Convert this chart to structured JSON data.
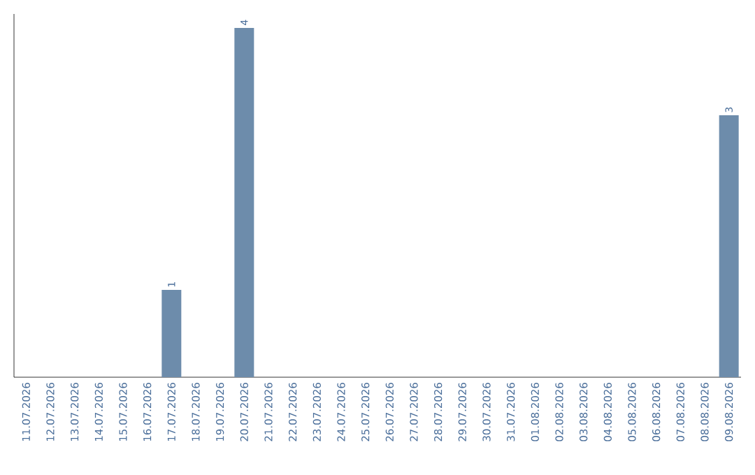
{
  "chart_data": {
    "type": "bar",
    "categories": [
      "11.07.2026",
      "12.07.2026",
      "13.07.2026",
      "14.07.2026",
      "15.07.2026",
      "16.07.2026",
      "17.07.2026",
      "18.07.2026",
      "19.07.2026",
      "20.07.2026",
      "21.07.2026",
      "22.07.2026",
      "23.07.2026",
      "24.07.2026",
      "25.07.2026",
      "26.07.2026",
      "27.07.2026",
      "28.07.2026",
      "29.07.2026",
      "30.07.2026",
      "31.07.2026",
      "01.08.2026",
      "02.08.2026",
      "03.08.2026",
      "04.08.2026",
      "05.08.2026",
      "06.08.2026",
      "07.08.2026",
      "08.08.2026",
      "09.08.2026"
    ],
    "values": [
      0,
      0,
      0,
      0,
      0,
      0,
      1,
      0,
      0,
      4,
      0,
      0,
      0,
      0,
      0,
      0,
      0,
      0,
      0,
      0,
      0,
      0,
      0,
      0,
      0,
      0,
      0,
      0,
      0,
      3
    ],
    "value_labels": [
      null,
      null,
      null,
      null,
      null,
      null,
      "1",
      null,
      null,
      "4",
      null,
      null,
      null,
      null,
      null,
      null,
      null,
      null,
      null,
      null,
      null,
      null,
      null,
      null,
      null,
      null,
      null,
      null,
      null,
      "3"
    ],
    "color": "#6d8cab"
  }
}
